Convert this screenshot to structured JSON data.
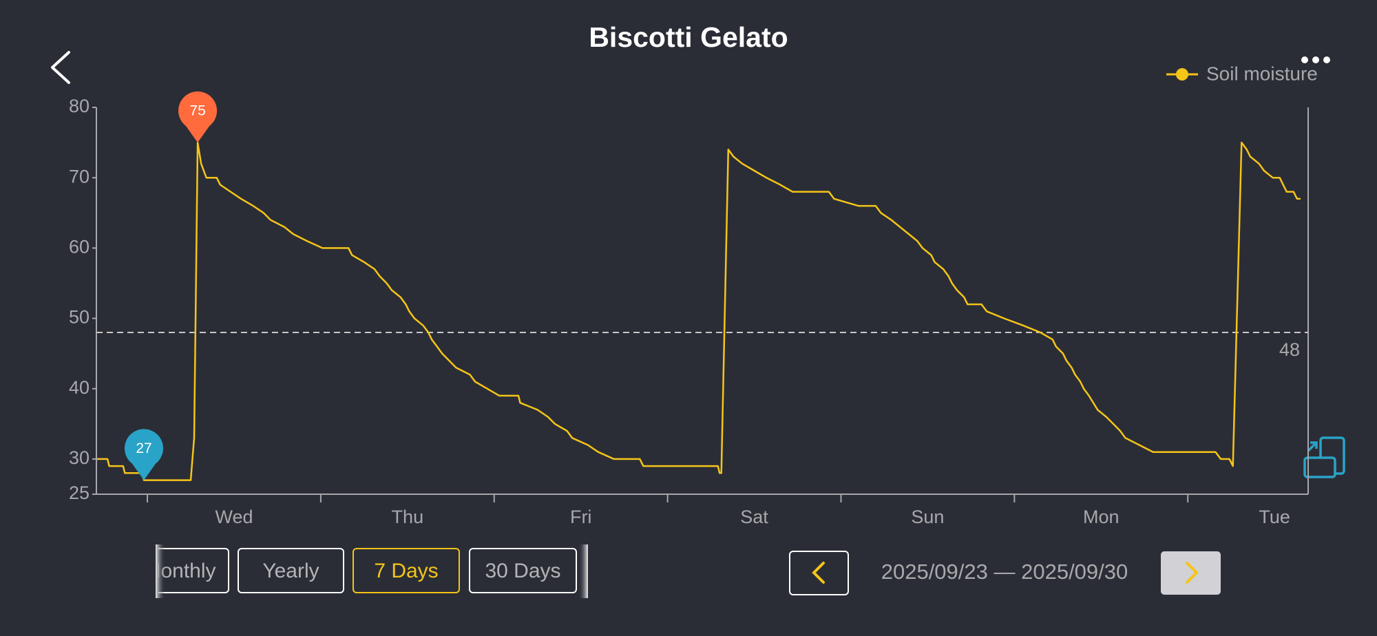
{
  "chart_data": {
    "type": "line",
    "title": "Biscotti Gelato",
    "categories": [
      "Wed",
      "Thu",
      "Fri",
      "Sat",
      "Sun",
      "Mon",
      "Tue"
    ],
    "x": [
      -0.29,
      -0.23,
      -0.22,
      -0.14,
      -0.13,
      -0.03,
      -0.02,
      0.25,
      0.27,
      0.29,
      0.31,
      0.34,
      0.4,
      0.42,
      0.48,
      0.54,
      0.61,
      0.67,
      0.71,
      0.79,
      0.84,
      0.92,
      1.01,
      1.16,
      1.18,
      1.25,
      1.31,
      1.34,
      1.38,
      1.41,
      1.46,
      1.49,
      1.51,
      1.54,
      1.59,
      1.62,
      1.64,
      1.67,
      1.7,
      1.74,
      1.78,
      1.86,
      1.89,
      1.96,
      2.03,
      2.14,
      2.15,
      2.25,
      2.31,
      2.35,
      2.42,
      2.45,
      2.54,
      2.6,
      2.69,
      2.84,
      2.86,
      3.29,
      3.3,
      3.31,
      3.35,
      3.38,
      3.43,
      3.5,
      3.57,
      3.65,
      3.72,
      3.93,
      3.96,
      4.1,
      4.2,
      4.23,
      4.29,
      4.34,
      4.39,
      4.44,
      4.47,
      4.52,
      4.54,
      4.59,
      4.62,
      4.64,
      4.67,
      4.71,
      4.73,
      4.81,
      4.84,
      4.94,
      5.05,
      5.15,
      5.22,
      5.24,
      5.28,
      5.3,
      5.33,
      5.35,
      5.38,
      5.4,
      5.43,
      5.48,
      5.53,
      5.57,
      5.61,
      5.64,
      5.72,
      5.8,
      6.16,
      6.19,
      6.24,
      6.26,
      6.31,
      6.34,
      6.36,
      6.41,
      6.44,
      6.49,
      6.53,
      6.55,
      6.57,
      6.61,
      6.63,
      6.65
    ],
    "series": [
      {
        "name": "Soil moisture",
        "color": "#f5c518",
        "values": [
          30,
          30,
          29,
          29,
          28,
          28,
          27,
          27,
          33,
          75,
          72,
          70,
          70,
          69,
          68,
          67,
          66,
          65,
          64,
          63,
          62,
          61,
          60,
          60,
          59,
          58,
          57,
          56,
          55,
          54,
          53,
          52,
          51,
          50,
          49,
          48,
          47,
          46,
          45,
          44,
          43,
          42,
          41,
          40,
          39,
          39,
          38,
          37,
          36,
          35,
          34,
          33,
          32,
          31,
          30,
          30,
          29,
          29,
          28,
          28,
          74,
          73,
          72,
          71,
          70,
          69,
          68,
          68,
          67,
          66,
          66,
          65,
          64,
          63,
          62,
          61,
          60,
          59,
          58,
          57,
          56,
          55,
          54,
          53,
          52,
          52,
          51,
          50,
          49,
          48,
          47,
          46,
          45,
          44,
          43,
          42,
          41,
          40,
          39,
          37,
          36,
          35,
          34,
          33,
          32,
          31,
          31,
          30,
          30,
          29,
          75,
          74,
          73,
          72,
          71,
          70,
          70,
          69,
          68,
          68,
          67,
          67
        ]
      }
    ],
    "xlim": [
      -0.294,
      6.694
    ],
    "ylim": [
      25,
      80
    ],
    "yticks": [
      25,
      30,
      40,
      50,
      60,
      70,
      80
    ],
    "threshold": {
      "value": 48,
      "color": "#c8c8c8"
    },
    "max_marker": {
      "x": 0.29,
      "value": 75,
      "color": "#ff6b3d"
    },
    "min_marker": {
      "x": -0.02,
      "value": 27,
      "color": "#2aa3c8"
    },
    "legend": "top-right"
  },
  "controls": {
    "ranges": [
      "Monthly",
      "Yearly",
      "7 Days",
      "30 Days"
    ],
    "selected_index": 2,
    "date_range": "2025/09/23 — 2025/09/30"
  }
}
